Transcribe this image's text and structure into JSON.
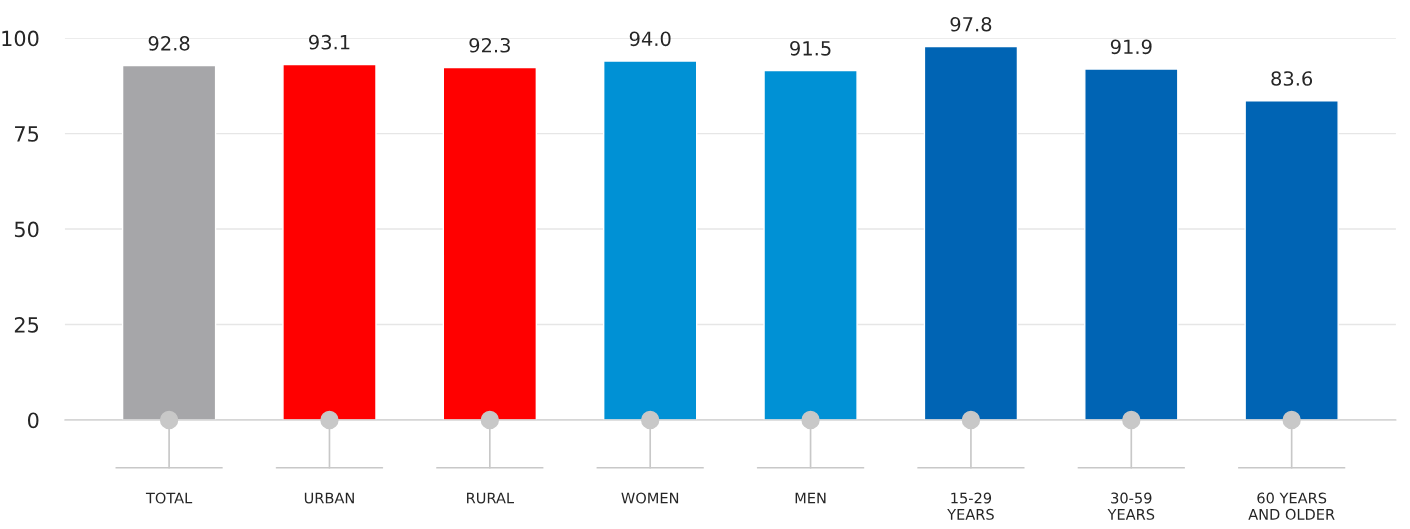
{
  "chart_data": {
    "type": "bar",
    "categories": [
      "TOTAL",
      "URBAN",
      "RURAL",
      "WOMEN",
      "MEN",
      "15-29\nYEARS",
      "30-59\nYEARS",
      "60 YEARS\nAND OLDER"
    ],
    "values": [
      92.8,
      93.1,
      92.3,
      94.0,
      91.5,
      97.8,
      91.9,
      83.6
    ],
    "colors": [
      "#a6a6a9",
      "#ff0000",
      "#ff0000",
      "#0091d5",
      "#0091d5",
      "#0064b4",
      "#0064b4",
      "#0064b4"
    ],
    "ylim": [
      0,
      100
    ],
    "yticks": [
      0,
      25,
      50,
      75,
      100
    ],
    "value_labels": [
      "92.8",
      "93.1",
      "92.3",
      "94.0",
      "91.5",
      "97.8",
      "91.9",
      "83.6"
    ],
    "grid": "y",
    "legend": false
  }
}
